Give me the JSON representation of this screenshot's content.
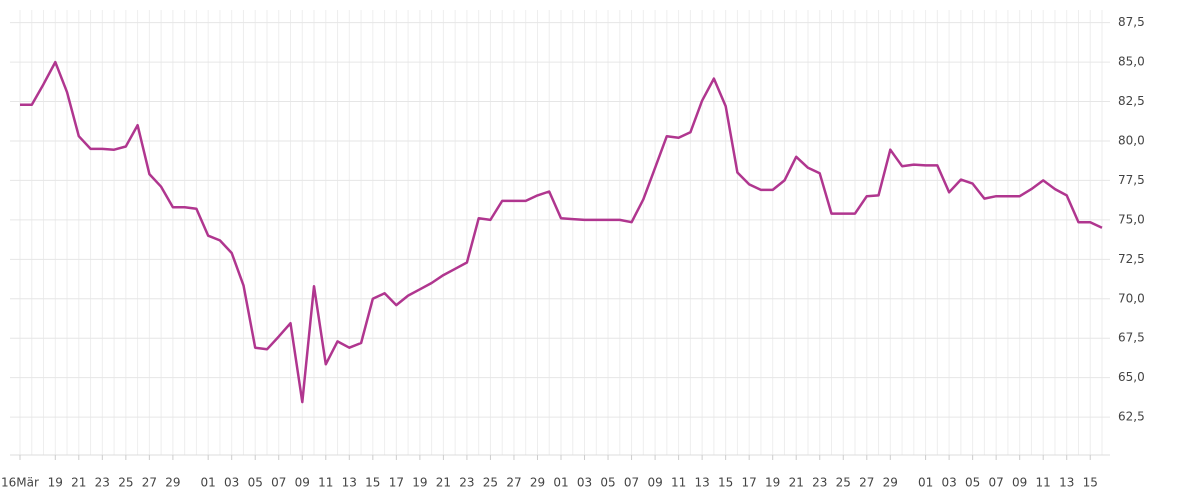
{
  "chart_data": {
    "type": "line",
    "categories": [
      "16Mär",
      null,
      null,
      "19",
      null,
      "21",
      null,
      "23",
      null,
      "25",
      null,
      "27",
      null,
      "29",
      null,
      null,
      "01",
      null,
      "03",
      null,
      "05",
      null,
      "07",
      null,
      "09",
      null,
      "11",
      null,
      "13",
      null,
      "15",
      null,
      "17",
      null,
      "19",
      null,
      "21",
      null,
      "23",
      null,
      "25",
      null,
      "27",
      null,
      "29",
      null,
      "01",
      null,
      "03",
      null,
      "05",
      null,
      "07",
      null,
      "09",
      null,
      "11",
      null,
      "13",
      null,
      "15",
      null,
      "17",
      null,
      "19",
      null,
      "21",
      null,
      "23",
      null,
      "25",
      null,
      "27",
      null,
      "29",
      null,
      null,
      "01",
      null,
      "03",
      null,
      "05",
      null,
      "07",
      null,
      "09",
      null,
      "11",
      null,
      "13",
      null,
      "15",
      null
    ],
    "series": [
      {
        "color": "#b0368f",
        "values": [
          82.3,
          82.3,
          83.6,
          85.0,
          83.1,
          80.3,
          79.5,
          79.5,
          79.45,
          79.65,
          81.0,
          77.9,
          77.1,
          75.8,
          75.8,
          75.7,
          74.0,
          73.7,
          72.9,
          70.85,
          66.9,
          66.8,
          67.6,
          68.45,
          63.45,
          70.8,
          65.85,
          67.3,
          66.9,
          67.2,
          70.0,
          70.35,
          69.6,
          70.2,
          70.6,
          71.0,
          71.5,
          71.9,
          72.3,
          75.1,
          75.0,
          76.2,
          76.2,
          76.2,
          76.55,
          76.8,
          75.1,
          75.05,
          75.0,
          75.0,
          75.0,
          75.0,
          74.85,
          76.3,
          78.3,
          80.3,
          80.2,
          80.55,
          82.55,
          83.95,
          82.2,
          78.0,
          77.25,
          76.9,
          76.9,
          77.5,
          79.0,
          78.3,
          77.95,
          75.4,
          75.4,
          75.4,
          76.5,
          76.55,
          79.45,
          78.4,
          78.5,
          78.45,
          78.45,
          76.75,
          77.55,
          77.3,
          76.35,
          76.5,
          76.5,
          76.5,
          76.95,
          77.5,
          76.95,
          76.55,
          74.85,
          74.85,
          74.5
        ]
      }
    ],
    "ylim": [
      60.1,
      88.3
    ],
    "yticks": [
      {
        "value": 62.5,
        "label": "62,5"
      },
      {
        "value": 65,
        "label": "65,0"
      },
      {
        "value": 67.5,
        "label": "67,5"
      },
      {
        "value": 70,
        "label": "70,0"
      },
      {
        "value": 72.5,
        "label": "72,5"
      },
      {
        "value": 75,
        "label": "75,0"
      },
      {
        "value": 77.5,
        "label": "77,5"
      },
      {
        "value": 80,
        "label": "80,0"
      },
      {
        "value": 82.5,
        "label": "82,5"
      },
      {
        "value": 85,
        "label": "85,0"
      },
      {
        "value": 87.5,
        "label": "87,5"
      }
    ],
    "grid": true
  }
}
